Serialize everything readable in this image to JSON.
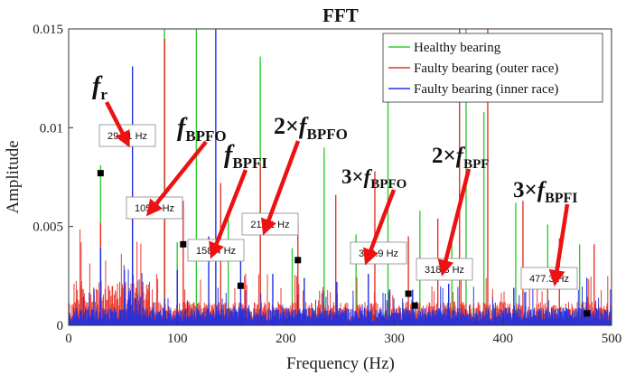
{
  "chart_data": {
    "type": "line",
    "title": "FFT",
    "xlabel": "Frequency (Hz)",
    "ylabel": "Amplitude",
    "xlim": [
      0,
      500
    ],
    "ylim": [
      0,
      0.015
    ],
    "x_ticks": [
      "0",
      "100",
      "200",
      "300",
      "400",
      "500"
    ],
    "x_tick_values": [
      0,
      100,
      200,
      300,
      400,
      500
    ],
    "y_ticks": [
      "0",
      "0.005",
      "0.01",
      "0.015"
    ],
    "y_tick_values": [
      0,
      0.005,
      0.01,
      0.015
    ],
    "grid": false,
    "legend_position": "top-right",
    "series": [
      {
        "name": "Healthy bearing",
        "color": "#33cc33",
        "noise_level": 0.0004,
        "peaks": [
          {
            "x": 29.41,
            "y": 0.0081
          },
          {
            "x": 58.8,
            "y": 0.0065
          },
          {
            "x": 88.2,
            "y": 0.015
          },
          {
            "x": 100,
            "y": 0.0042
          },
          {
            "x": 117.6,
            "y": 0.015
          },
          {
            "x": 147,
            "y": 0.0058
          },
          {
            "x": 176.5,
            "y": 0.0136
          },
          {
            "x": 205.9,
            "y": 0.0039
          },
          {
            "x": 235.3,
            "y": 0.009
          },
          {
            "x": 264.7,
            "y": 0.0046
          },
          {
            "x": 294.1,
            "y": 0.0136
          },
          {
            "x": 323.5,
            "y": 0.0058
          },
          {
            "x": 352.9,
            "y": 0.0046
          },
          {
            "x": 366,
            "y": 0.015
          },
          {
            "x": 382.4,
            "y": 0.0108
          },
          {
            "x": 411.8,
            "y": 0.0062
          },
          {
            "x": 441.2,
            "y": 0.0051
          },
          {
            "x": 470.6,
            "y": 0.0041
          }
        ]
      },
      {
        "name": "Faulty bearing (outer race)",
        "color": "#e8332a",
        "noise_level": 0.0012,
        "peaks": [
          {
            "x": 29.41,
            "y": 0.0052
          },
          {
            "x": 88.5,
            "y": 0.0145
          },
          {
            "x": 105.5,
            "y": 0.0063
          },
          {
            "x": 140,
            "y": 0.0072
          },
          {
            "x": 176.5,
            "y": 0.0082
          },
          {
            "x": 211.1,
            "y": 0.0053
          },
          {
            "x": 246,
            "y": 0.0066
          },
          {
            "x": 282,
            "y": 0.0078
          },
          {
            "x": 312.9,
            "y": 0.0045
          },
          {
            "x": 340,
            "y": 0.0054
          },
          {
            "x": 360,
            "y": 0.015
          },
          {
            "x": 386,
            "y": 0.015
          },
          {
            "x": 418.4,
            "y": 0.0063
          },
          {
            "x": 452,
            "y": 0.0044
          },
          {
            "x": 484,
            "y": 0.0041
          }
        ]
      },
      {
        "name": "Faulty bearing (inner race)",
        "color": "#2230e0",
        "noise_level": 0.0009,
        "peaks": [
          {
            "x": 29.41,
            "y": 0.0039
          },
          {
            "x": 58.8,
            "y": 0.0131
          },
          {
            "x": 100,
            "y": 0.0028
          },
          {
            "x": 129,
            "y": 0.0045
          },
          {
            "x": 135.5,
            "y": 0.015
          },
          {
            "x": 158.4,
            "y": 0.0033
          },
          {
            "x": 188,
            "y": 0.0026
          },
          {
            "x": 217,
            "y": 0.0024
          },
          {
            "x": 247,
            "y": 0.0022
          },
          {
            "x": 276,
            "y": 0.0026
          },
          {
            "x": 316.8,
            "y": 0.0018
          },
          {
            "x": 350,
            "y": 0.0021
          },
          {
            "x": 410,
            "y": 0.0019
          },
          {
            "x": 477.3,
            "y": 0.0024
          }
        ]
      }
    ],
    "data_tips": [
      {
        "label": "29.41 Hz",
        "x": 29.41,
        "y": 0.0077
      },
      {
        "label": "105.5 Hz",
        "x": 105.5,
        "y": 0.0041
      },
      {
        "label": "158.4 Hz",
        "x": 158.4,
        "y": 0.002
      },
      {
        "label": "211.1 Hz",
        "x": 211.1,
        "y": 0.0033
      },
      {
        "label": "312.9 Hz",
        "x": 312.9,
        "y": 0.0016
      },
      {
        "label": "318.8 Hz",
        "x": 318.8,
        "y": 0.001
      },
      {
        "label": "477.3 Hz",
        "x": 477.3,
        "y": 0.0006
      }
    ],
    "annotations": [
      {
        "prefix": "",
        "base": "f",
        "sub": "r"
      },
      {
        "prefix": "",
        "base": "f",
        "sub": "BPFO"
      },
      {
        "prefix": "",
        "base": "f",
        "sub": "BPFI"
      },
      {
        "prefix": "2×",
        "base": "f",
        "sub": "BPFO"
      },
      {
        "prefix": "3×",
        "base": "f",
        "sub": "BPFO"
      },
      {
        "prefix": "2×",
        "base": "f",
        "sub": "BPF"
      },
      {
        "prefix": "3×",
        "base": "f",
        "sub": "BPFI"
      }
    ]
  }
}
